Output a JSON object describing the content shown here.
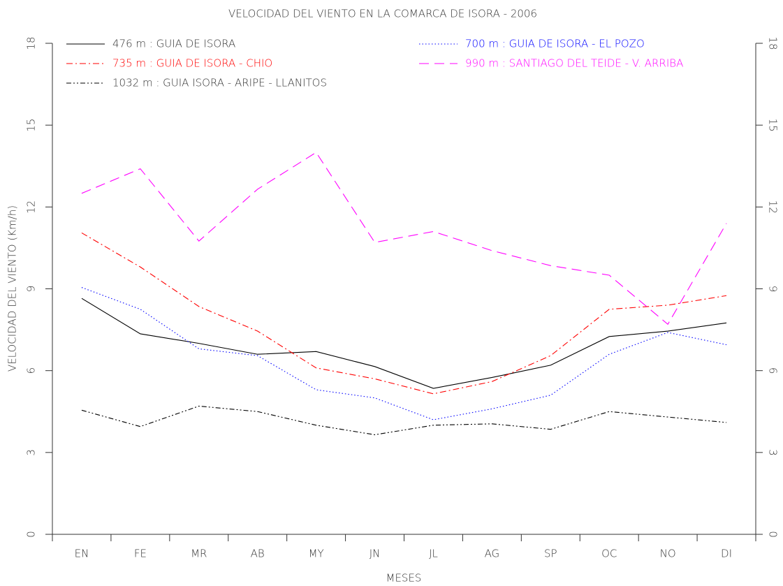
{
  "chart_data": {
    "type": "line",
    "title": "VELOCIDAD DEL VIENTO EN LA COMARCA DE ISORA - 2006",
    "x_label": "MESES",
    "y_label": "VELOCIDAD DEL VIENTO (Km/h)",
    "categories": [
      "EN",
      "FE",
      "MR",
      "AB",
      "MY",
      "JN",
      "JL",
      "AG",
      "SP",
      "OC",
      "NO",
      "DI"
    ],
    "ylim": [
      0,
      18
    ],
    "yticks": [
      0,
      3,
      6,
      9,
      12,
      15,
      18
    ],
    "y2lim": [
      0,
      18
    ],
    "y2ticks": [
      0,
      3,
      6,
      9,
      12,
      15,
      18
    ],
    "grid": false,
    "legend": "top",
    "series": [
      {
        "name": "476 m : GUIA DE ISORA",
        "color": "#000000",
        "linestyle": "solid",
        "values": [
          8.65,
          7.35,
          7.0,
          6.6,
          6.7,
          6.15,
          5.35,
          5.75,
          6.2,
          7.25,
          7.45,
          7.75
        ]
      },
      {
        "name": "700 m : GUIA DE ISORA - EL POZO",
        "color": "#0000ff",
        "linestyle": "dotted",
        "values": [
          9.05,
          8.25,
          6.8,
          6.55,
          5.3,
          5.0,
          4.2,
          4.6,
          5.1,
          6.6,
          7.4,
          6.95
        ]
      },
      {
        "name": "735 m : GUIA DE ISORA - CHIO",
        "color": "#ff0000",
        "linestyle": "dashdot",
        "values": [
          11.05,
          9.8,
          8.35,
          7.45,
          6.1,
          5.7,
          5.15,
          5.6,
          6.55,
          8.25,
          8.4,
          8.75
        ]
      },
      {
        "name": "990 m : SANTIAGO DEL TEIDE - V. ARRIBA",
        "color": "#ff00ff",
        "linestyle": "dashed",
        "values": [
          12.5,
          13.4,
          10.75,
          12.65,
          14.0,
          10.7,
          11.1,
          10.4,
          9.85,
          9.5,
          7.7,
          11.4
        ]
      },
      {
        "name": "1032 m : GUIA ISORA - ARIPE - LLANITOS",
        "color": "#000000",
        "linestyle": "dashdotdot",
        "values": [
          4.55,
          3.95,
          4.7,
          4.5,
          4.0,
          3.65,
          4.0,
          4.05,
          3.85,
          4.5,
          4.3,
          4.1
        ]
      }
    ]
  }
}
